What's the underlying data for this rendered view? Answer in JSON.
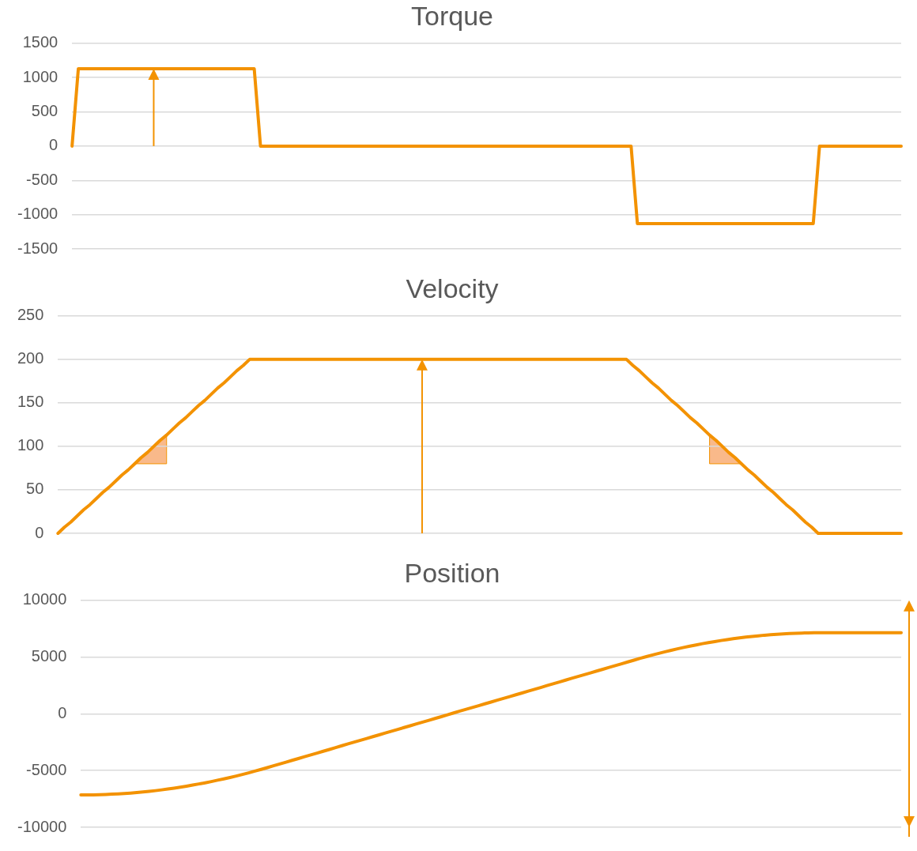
{
  "chart_data": [
    {
      "type": "line",
      "title": "Torque",
      "color": "#f39200",
      "grid": "y",
      "tick_labels": "y",
      "ylim": [
        -1500,
        1500
      ],
      "yticks": [
        -1500,
        -1000,
        -500,
        0,
        500,
        1000,
        1500
      ],
      "categories": [
        null,
        null,
        null,
        null,
        null,
        null,
        null,
        null,
        null,
        null,
        null,
        null,
        null,
        null,
        null,
        null,
        null,
        null,
        null,
        null,
        null,
        null,
        null,
        null,
        null,
        null,
        null,
        null,
        null,
        null,
        null,
        null,
        null,
        null,
        null,
        null,
        null,
        null,
        null,
        null,
        null,
        null,
        null,
        null,
        null,
        null,
        null,
        null,
        null,
        null,
        null,
        null,
        null,
        null,
        null,
        null,
        null,
        null,
        null,
        null,
        null,
        null,
        null,
        null,
        null,
        null,
        null,
        null,
        null,
        null,
        null,
        null,
        null,
        null,
        null,
        null,
        null,
        null,
        null,
        null,
        null,
        null,
        null,
        null,
        null,
        null,
        null,
        null,
        null,
        null,
        null,
        null,
        null,
        null,
        null,
        null,
        null,
        null,
        null,
        null,
        null,
        null,
        null,
        null,
        null,
        null,
        null,
        null,
        null,
        null,
        null,
        null,
        null,
        null,
        null,
        null,
        null,
        null,
        null,
        null,
        null,
        null,
        null,
        null,
        null,
        null,
        null,
        null,
        null,
        null,
        null,
        null,
        null
      ],
      "values": [
        0,
        1130,
        1130,
        1130,
        1130,
        1130,
        1130,
        1130,
        1130,
        1130,
        1130,
        1130,
        1130,
        1130,
        1130,
        1130,
        1130,
        1130,
        1130,
        1130,
        1130,
        1130,
        1130,
        1130,
        1130,
        1130,
        1130,
        1130,
        1130,
        1130,
        0,
        0,
        0,
        0,
        0,
        0,
        0,
        0,
        0,
        0,
        0,
        0,
        0,
        0,
        0,
        0,
        0,
        0,
        0,
        0,
        0,
        0,
        0,
        0,
        0,
        0,
        0,
        0,
        0,
        0,
        0,
        0,
        0,
        0,
        0,
        0,
        0,
        0,
        0,
        0,
        0,
        0,
        0,
        0,
        0,
        0,
        0,
        0,
        0,
        0,
        0,
        0,
        0,
        0,
        0,
        0,
        0,
        0,
        0,
        0,
        -1130,
        -1130,
        -1130,
        -1130,
        -1130,
        -1130,
        -1130,
        -1130,
        -1130,
        -1130,
        -1130,
        -1130,
        -1130,
        -1130,
        -1130,
        -1130,
        -1130,
        -1130,
        -1130,
        -1130,
        -1130,
        -1130,
        -1130,
        -1130,
        -1130,
        -1130,
        -1130,
        -1130,
        -1130,
        0,
        0,
        0,
        0,
        0,
        0,
        0,
        0,
        0,
        0,
        0,
        0,
        0,
        0
      ]
    },
    {
      "type": "line",
      "title": "Velocity",
      "color": "#f39200",
      "grid": "y",
      "tick_labels": "y",
      "ylim": [
        0,
        250
      ],
      "yticks": [
        0,
        50,
        100,
        150,
        200,
        250
      ],
      "categories": [
        null,
        null,
        null,
        null,
        null,
        null,
        null,
        null,
        null,
        null,
        null,
        null,
        null,
        null,
        null,
        null,
        null,
        null,
        null,
        null,
        null,
        null,
        null,
        null,
        null,
        null,
        null,
        null,
        null,
        null,
        null,
        null,
        null,
        null,
        null,
        null,
        null,
        null,
        null,
        null,
        null,
        null,
        null,
        null,
        null,
        null,
        null,
        null,
        null,
        null,
        null,
        null,
        null,
        null,
        null,
        null,
        null,
        null,
        null,
        null,
        null,
        null,
        null,
        null,
        null,
        null,
        null,
        null,
        null,
        null,
        null,
        null,
        null,
        null,
        null,
        null,
        null,
        null,
        null,
        null,
        null,
        null,
        null,
        null,
        null,
        null,
        null,
        null,
        null,
        null,
        null,
        null,
        null,
        null,
        null,
        null,
        null,
        null,
        null,
        null,
        null,
        null,
        null,
        null,
        null,
        null,
        null,
        null,
        null,
        null,
        null,
        null,
        null,
        null,
        null,
        null,
        null,
        null,
        null,
        null,
        null,
        null,
        null,
        null,
        null,
        null,
        null,
        null,
        null,
        null,
        null,
        null,
        null
      ],
      "values": [
        0,
        7,
        13,
        20,
        27,
        33,
        40,
        47,
        53,
        60,
        67,
        73,
        80,
        87,
        93,
        100,
        107,
        113,
        120,
        127,
        133,
        140,
        147,
        153,
        160,
        167,
        173,
        180,
        187,
        193,
        200,
        200,
        200,
        200,
        200,
        200,
        200,
        200,
        200,
        200,
        200,
        200,
        200,
        200,
        200,
        200,
        200,
        200,
        200,
        200,
        200,
        200,
        200,
        200,
        200,
        200,
        200,
        200,
        200,
        200,
        200,
        200,
        200,
        200,
        200,
        200,
        200,
        200,
        200,
        200,
        200,
        200,
        200,
        200,
        200,
        200,
        200,
        200,
        200,
        200,
        200,
        200,
        200,
        200,
        200,
        200,
        200,
        200,
        200,
        200,
        193,
        187,
        180,
        173,
        167,
        160,
        153,
        147,
        140,
        133,
        127,
        120,
        113,
        107,
        100,
        93,
        87,
        80,
        73,
        67,
        60,
        53,
        47,
        40,
        33,
        27,
        20,
        13,
        7,
        0,
        0,
        0,
        0,
        0,
        0,
        0,
        0,
        0,
        0,
        0,
        0,
        0,
        0
      ]
    },
    {
      "type": "line",
      "title": "Position",
      "color": "#f39200",
      "grid": "y",
      "tick_labels": "y",
      "ylim": [
        -10000,
        10000
      ],
      "yticks": [
        -10000,
        -5000,
        0,
        5000,
        10000
      ],
      "categories": [
        null,
        null,
        null,
        null,
        null,
        null,
        null,
        null,
        null,
        null,
        null,
        null,
        null,
        null,
        null,
        null,
        null,
        null,
        null,
        null,
        null,
        null,
        null,
        null,
        null,
        null,
        null,
        null,
        null,
        null,
        null,
        null,
        null,
        null,
        null,
        null,
        null,
        null,
        null,
        null,
        null,
        null,
        null,
        null,
        null,
        null,
        null,
        null,
        null,
        null,
        null,
        null,
        null,
        null,
        null,
        null,
        null,
        null,
        null,
        null,
        null,
        null,
        null,
        null,
        null,
        null,
        null,
        null,
        null,
        null,
        null,
        null,
        null,
        null,
        null,
        null,
        null,
        null,
        null,
        null,
        null,
        null,
        null,
        null,
        null,
        null,
        null,
        null,
        null,
        null,
        null,
        null,
        null,
        null,
        null,
        null,
        null,
        null,
        null,
        null,
        null,
        null,
        null,
        null,
        null,
        null,
        null,
        null,
        null,
        null,
        null,
        null,
        null,
        null,
        null,
        null,
        null,
        null,
        null,
        null,
        null,
        null,
        null,
        null,
        null,
        null,
        null,
        null,
        null,
        null,
        null,
        null,
        null
      ],
      "values": [
        -7150,
        -7150,
        -7140,
        -7130,
        -7110,
        -7080,
        -7050,
        -7020,
        -6980,
        -6930,
        -6880,
        -6830,
        -6770,
        -6700,
        -6630,
        -6550,
        -6470,
        -6380,
        -6280,
        -6180,
        -6080,
        -5970,
        -5850,
        -5730,
        -5610,
        -5480,
        -5340,
        -5200,
        -5050,
        -4900,
        -4740,
        -4580,
        -4420,
        -4260,
        -4100,
        -3940,
        -3780,
        -3620,
        -3460,
        -3300,
        -3140,
        -2980,
        -2810,
        -2650,
        -2490,
        -2330,
        -2170,
        -2010,
        -1850,
        -1690,
        -1530,
        -1370,
        -1210,
        -1050,
        -890,
        -730,
        -570,
        -410,
        -250,
        -80,
        80,
        240,
        400,
        560,
        720,
        880,
        1040,
        1200,
        1360,
        1520,
        1680,
        1840,
        2000,
        2160,
        2320,
        2490,
        2650,
        2810,
        2970,
        3130,
        3290,
        3450,
        3610,
        3770,
        3930,
        4090,
        4250,
        4410,
        4570,
        4730,
        4890,
        5040,
        5190,
        5330,
        5470,
        5600,
        5730,
        5850,
        5960,
        6070,
        6180,
        6280,
        6370,
        6460,
        6540,
        6620,
        6690,
        6760,
        6820,
        6870,
        6930,
        6970,
        7010,
        7050,
        7080,
        7100,
        7120,
        7130,
        7140,
        7140,
        7140,
        7140,
        7140,
        7140,
        7140,
        7140,
        7140,
        7140,
        7140,
        7140,
        7140,
        7140,
        7140
      ]
    }
  ]
}
